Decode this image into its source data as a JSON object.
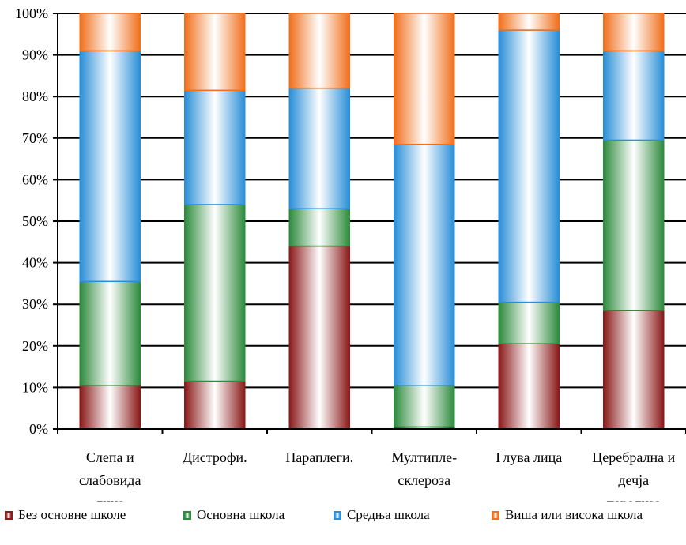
{
  "chart_data": {
    "type": "bar",
    "stacked": true,
    "normalized": true,
    "categories": [
      [
        "Слепа и",
        "слабовида",
        "лица"
      ],
      [
        "Дистрофи."
      ],
      [
        "Параплеги."
      ],
      [
        "Мултипле-",
        "склероза"
      ],
      [
        "Глува лица"
      ],
      [
        "Церебрална и",
        "дечја",
        "парализа"
      ]
    ],
    "series": [
      {
        "name": "Без основне школе",
        "color": "#8b1a1a",
        "values": [
          10.5,
          11.5,
          44.0,
          0.5,
          20.5,
          28.5
        ]
      },
      {
        "name": "Основна школа",
        "color": "#2e8b3e",
        "values": [
          25.0,
          42.5,
          9.0,
          10.0,
          10.0,
          41.0
        ]
      },
      {
        "name": "Средња школа",
        "color": "#2a8fd8",
        "values": [
          55.5,
          27.5,
          29.0,
          58.0,
          65.5,
          21.5
        ]
      },
      {
        "name": "Виша или висока школа",
        "color": "#f0701e",
        "values": [
          9.0,
          18.5,
          18.0,
          31.5,
          4.0,
          9.0
        ]
      }
    ],
    "yticks": [
      "0%",
      "10%",
      "20%",
      "30%",
      "40%",
      "50%",
      "60%",
      "70%",
      "80%",
      "90%",
      "100%"
    ],
    "ylim": [
      0,
      100
    ],
    "grid": true,
    "legend_position": "bottom"
  }
}
